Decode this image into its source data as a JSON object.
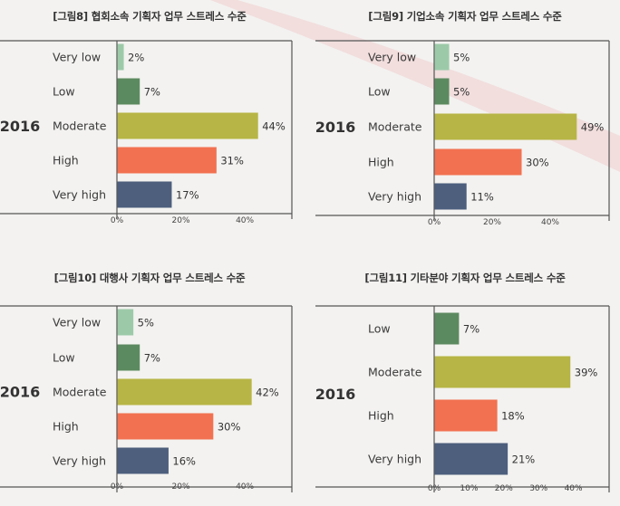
{
  "colors": {
    "Very low": "#9ccaa8",
    "Low": "#5c8a60",
    "Moderate": "#b7b545",
    "High": "#f27150",
    "Very high": "#4d5f7d",
    "frame": "#555555",
    "swoosh": "#f1d4d4"
  },
  "chart_data": [
    {
      "type": "bar",
      "orientation": "horizontal",
      "title": "[그림8] 협회소속 기획자 업무 스트레스 수준",
      "group_label": "2016",
      "categories": [
        "Very low",
        "Low",
        "Moderate",
        "High",
        "Very high"
      ],
      "values": [
        2,
        7,
        44,
        31,
        17
      ],
      "value_labels": [
        "2%",
        "7%",
        "44%",
        "31%",
        "17%"
      ],
      "xticks": [
        "0%",
        "20%",
        "40%"
      ],
      "xlim": [
        0,
        55
      ]
    },
    {
      "type": "bar",
      "orientation": "horizontal",
      "title": "[그림9] 기업소속 기획자 업무 스트레스 수준",
      "group_label": "2016",
      "categories": [
        "Very low",
        "Low",
        "Moderate",
        "High",
        "Very high"
      ],
      "values": [
        5,
        5,
        49,
        30,
        11
      ],
      "value_labels": [
        "5%",
        "5%",
        "49%",
        "30%",
        "11%"
      ],
      "xticks": [
        "0%",
        "20%",
        "40%"
      ],
      "xlim": [
        0,
        60
      ]
    },
    {
      "type": "bar",
      "orientation": "horizontal",
      "title": "[그림10] 대행사 기획자 업무 스트레스 수준",
      "group_label": "2016",
      "categories": [
        "Very low",
        "Low",
        "Moderate",
        "High",
        "Very high"
      ],
      "values": [
        5,
        7,
        42,
        30,
        16
      ],
      "value_labels": [
        "5%",
        "7%",
        "42%",
        "30%",
        "16%"
      ],
      "xticks": [
        "0%",
        "20%",
        "40%"
      ],
      "xlim": [
        0,
        55
      ]
    },
    {
      "type": "bar",
      "orientation": "horizontal",
      "title": "[그림11] 기타분야 기획자 업무 스트레스 수준",
      "group_label": "2016",
      "categories": [
        "Low",
        "Moderate",
        "High",
        "Very high"
      ],
      "values": [
        7,
        39,
        18,
        21
      ],
      "value_labels": [
        "7%",
        "39%",
        "18%",
        "21%"
      ],
      "xticks": [
        "0%",
        "10%",
        "20%",
        "30%",
        "40%"
      ],
      "xlim": [
        0,
        50
      ]
    }
  ]
}
